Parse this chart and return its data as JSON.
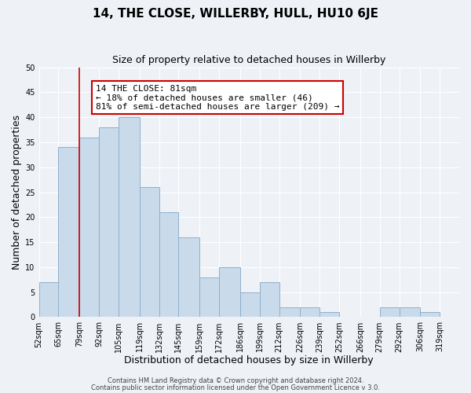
{
  "title": "14, THE CLOSE, WILLERBY, HULL, HU10 6JE",
  "subtitle": "Size of property relative to detached houses in Willerby",
  "xlabel": "Distribution of detached houses by size in Willerby",
  "ylabel": "Number of detached properties",
  "footer_lines": [
    "Contains HM Land Registry data © Crown copyright and database right 2024.",
    "Contains public sector information licensed under the Open Government Licence v 3.0."
  ],
  "bar_left_edges": [
    52,
    65,
    79,
    92,
    105,
    119,
    132,
    145,
    159,
    172,
    186,
    199,
    212,
    226,
    239,
    252,
    266,
    279,
    292,
    306
  ],
  "bar_heights": [
    7,
    34,
    36,
    38,
    40,
    26,
    21,
    16,
    8,
    10,
    5,
    7,
    2,
    2,
    1,
    0,
    0,
    2,
    2,
    1
  ],
  "bar_widths": [
    13,
    14,
    13,
    13,
    14,
    13,
    13,
    14,
    13,
    14,
    13,
    13,
    14,
    13,
    13,
    13,
    13,
    13,
    14,
    13
  ],
  "bar_color": "#c9daea",
  "bar_edgecolor": "#8fb0cc",
  "highlight_x": 79,
  "highlight_color": "#cc0000",
  "annotation_title": "14 THE CLOSE: 81sqm",
  "annotation_line1": "← 18% of detached houses are smaller (46)",
  "annotation_line2": "81% of semi-detached houses are larger (209) →",
  "annotation_box_facecolor": "#ffffff",
  "annotation_box_edgecolor": "#cc0000",
  "ylim": [
    0,
    50
  ],
  "yticks": [
    0,
    5,
    10,
    15,
    20,
    25,
    30,
    35,
    40,
    45,
    50
  ],
  "x_tick_labels": [
    "52sqm",
    "65sqm",
    "79sqm",
    "92sqm",
    "105sqm",
    "119sqm",
    "132sqm",
    "145sqm",
    "159sqm",
    "172sqm",
    "186sqm",
    "199sqm",
    "212sqm",
    "226sqm",
    "239sqm",
    "252sqm",
    "266sqm",
    "279sqm",
    "292sqm",
    "306sqm",
    "319sqm"
  ],
  "x_tick_positions": [
    52,
    65,
    79,
    92,
    105,
    119,
    132,
    145,
    159,
    172,
    186,
    199,
    212,
    226,
    239,
    252,
    266,
    279,
    292,
    306,
    319
  ],
  "xlim_left": 52,
  "xlim_right": 332,
  "background_color": "#eef2f7",
  "grid_color": "#ffffff",
  "title_fontsize": 11,
  "subtitle_fontsize": 9,
  "axis_label_fontsize": 9,
  "tick_fontsize": 7,
  "annotation_fontsize": 8,
  "footer_fontsize": 6
}
